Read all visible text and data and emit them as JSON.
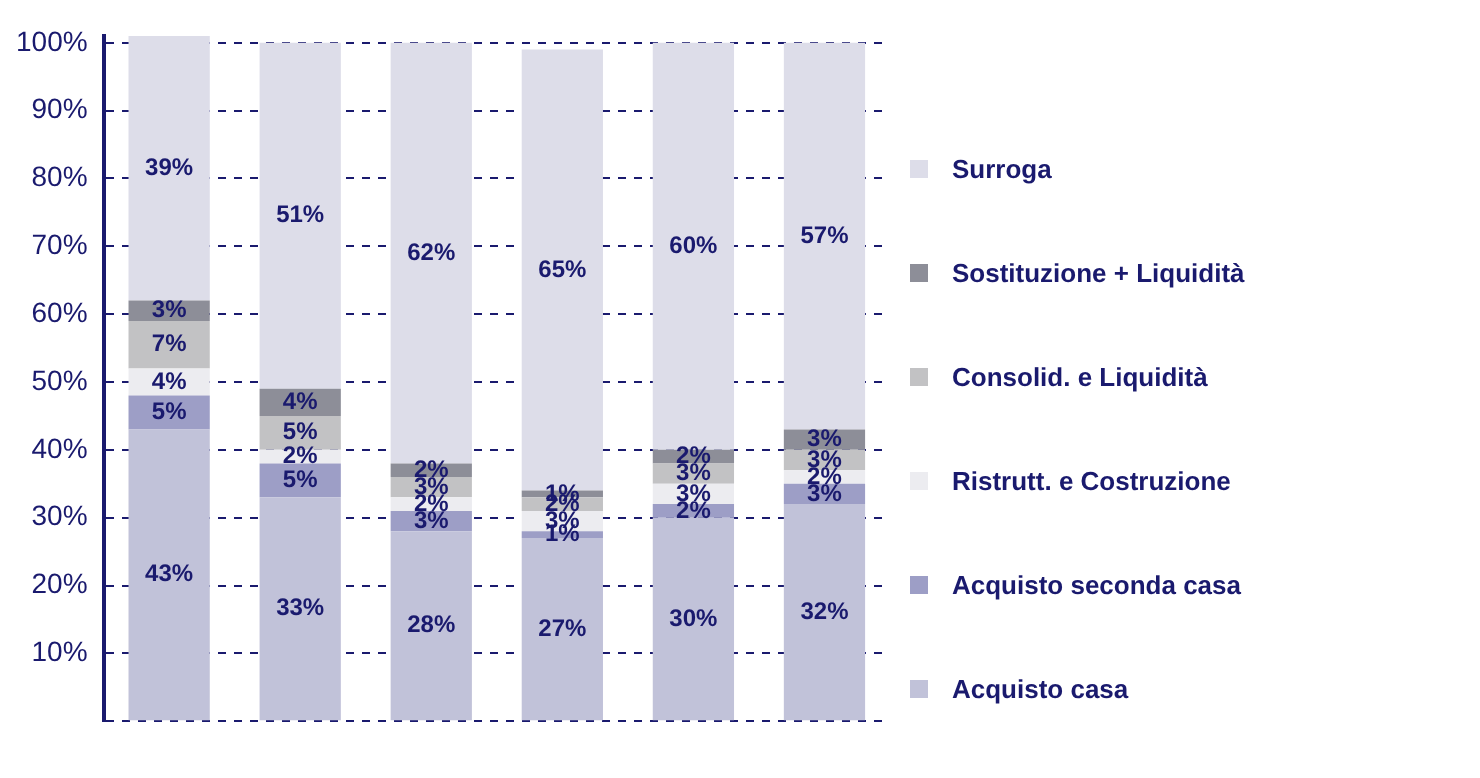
{
  "chart_data": {
    "type": "bar",
    "stacked": true,
    "categories": [
      null,
      null,
      null,
      null,
      null,
      null
    ],
    "series": [
      {
        "name": "Acquisto casa",
        "color": "#c1c2d9",
        "values": [
          43,
          33,
          28,
          27,
          30,
          32
        ],
        "value_labels": [
          "43%",
          "33%",
          "28%",
          "27%",
          "30%",
          "32%"
        ]
      },
      {
        "name": "Acquisto seconda casa",
        "color": "#9d9ec6",
        "values": [
          5,
          5,
          3,
          1,
          2,
          3
        ],
        "value_labels": [
          "5%",
          "5%",
          "3%",
          "1%",
          "2%",
          "3%"
        ]
      },
      {
        "name": "Ristrutt. e Costruzione",
        "color": "#ececf0",
        "values": [
          4,
          2,
          2,
          3,
          3,
          2
        ],
        "value_labels": [
          "4%",
          "2%",
          "2%",
          "3%",
          "3%",
          "2%"
        ]
      },
      {
        "name": "Consolid. e Liquidità",
        "color": "#c2c2c4",
        "values": [
          7,
          5,
          3,
          2,
          3,
          3
        ],
        "value_labels": [
          "7%",
          "5%",
          "3%",
          "2%",
          "3%",
          "3%"
        ]
      },
      {
        "name": "Sostituzione + Liquidità",
        "color": "#8d8e98",
        "values": [
          3,
          4,
          2,
          1,
          2,
          3
        ],
        "value_labels": [
          "3%",
          "4%",
          "2%",
          "1%",
          "2%",
          "3%"
        ]
      },
      {
        "name": "Surroga",
        "color": "#dddde9",
        "values": [
          39,
          51,
          62,
          65,
          60,
          57
        ],
        "value_labels": [
          "39%",
          "51%",
          "62%",
          "65%",
          "60%",
          "57%"
        ]
      }
    ],
    "ylim": [
      0,
      101
    ],
    "yticks": [
      {
        "value": 0,
        "label": null
      },
      {
        "value": 10,
        "label": "10%"
      },
      {
        "value": 20,
        "label": "20%"
      },
      {
        "value": 30,
        "label": "30%"
      },
      {
        "value": 40,
        "label": "40%"
      },
      {
        "value": 50,
        "label": "50%"
      },
      {
        "value": 60,
        "label": "60%"
      },
      {
        "value": 70,
        "label": "70%"
      },
      {
        "value": 80,
        "label": "80%"
      },
      {
        "value": 90,
        "label": "90%"
      },
      {
        "value": 100,
        "label": "100%"
      }
    ],
    "grid": "y",
    "legend": "right"
  }
}
